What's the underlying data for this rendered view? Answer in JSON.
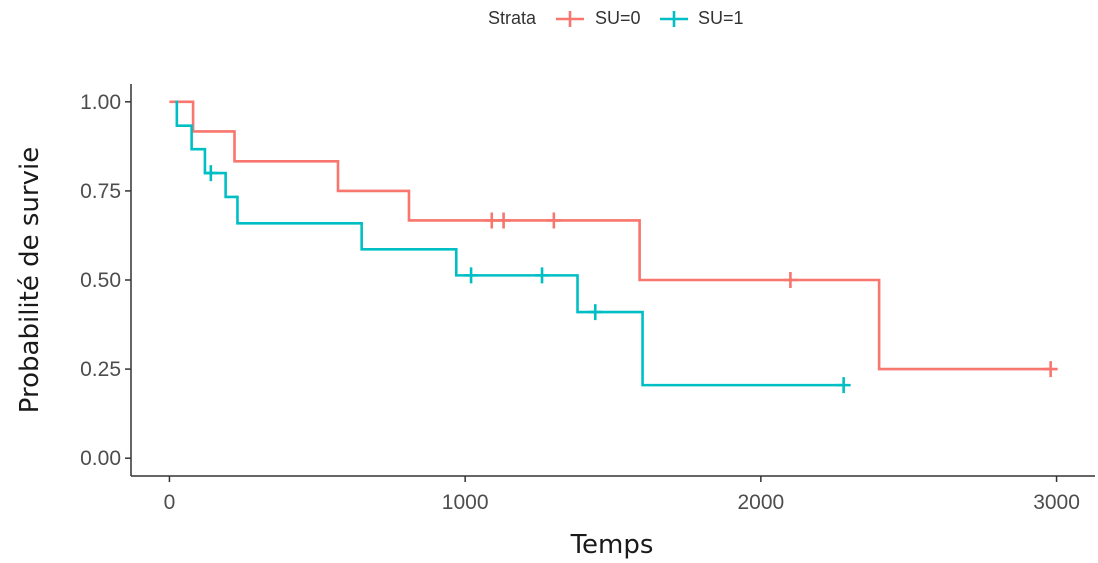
{
  "chart_data": {
    "type": "line",
    "title": "",
    "xlabel": "Temps",
    "ylabel": "Probabilité de survie",
    "xlim": [
      -130,
      3130
    ],
    "ylim": [
      -0.05,
      1.05
    ],
    "x_ticks": [
      0,
      1000,
      2000,
      3000
    ],
    "x_tick_labels": [
      "0",
      "1000",
      "2000",
      "3000"
    ],
    "y_ticks": [
      0,
      0.25,
      0.5,
      0.75,
      1.0
    ],
    "y_tick_labels": [
      "0.00",
      "0.25",
      "0.50",
      "0.75",
      "1.00"
    ],
    "grid": false,
    "legend": {
      "title": "Strata",
      "position": "top"
    },
    "series": [
      {
        "name": "SU=0",
        "color": "#F8766D",
        "step_x": [
          0,
          80,
          220,
          570,
          810,
          1590,
          2400,
          2980
        ],
        "step_y": [
          1.0,
          0.917,
          0.833,
          0.75,
          0.667,
          0.5,
          0.25,
          0.25
        ],
        "censor_x": [
          1090,
          1130,
          1300,
          2100,
          2980
        ],
        "censor_y": [
          0.667,
          0.667,
          0.667,
          0.5,
          0.25
        ]
      },
      {
        "name": "SU=1",
        "color": "#00BFC4",
        "step_x": [
          20,
          25,
          75,
          120,
          190,
          230,
          650,
          970,
          1380,
          1600,
          2280
        ],
        "step_y": [
          1.0,
          0.933,
          0.867,
          0.8,
          0.733,
          0.659,
          0.586,
          0.513,
          0.41,
          0.205,
          0.205
        ],
        "censor_x": [
          140,
          1020,
          1260,
          1440,
          2280
        ],
        "censor_y": [
          0.8,
          0.513,
          0.513,
          0.41,
          0.205
        ]
      }
    ]
  }
}
